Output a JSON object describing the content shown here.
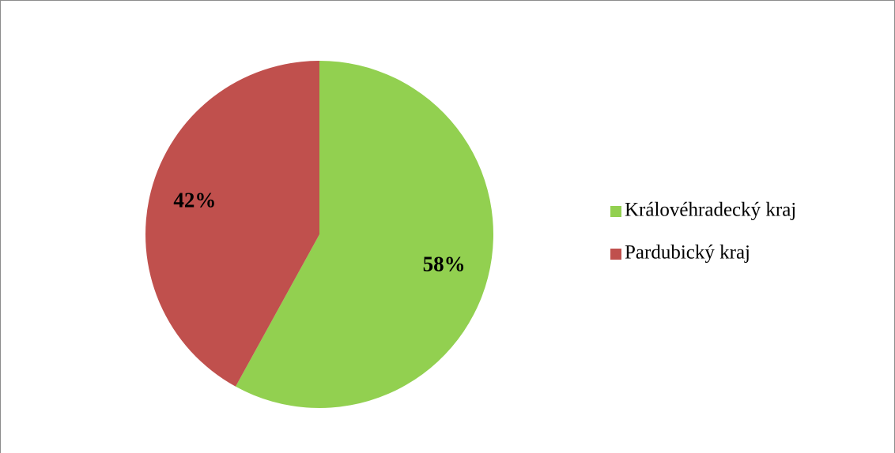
{
  "chart_data": {
    "type": "pie",
    "categories": [
      "Královéhradecký kraj",
      "Pardubický kraj"
    ],
    "values": [
      58,
      42
    ],
    "value_labels": [
      "58%",
      "42%"
    ],
    "colors": [
      "#92d050",
      "#c0504d"
    ],
    "legend": "right"
  }
}
